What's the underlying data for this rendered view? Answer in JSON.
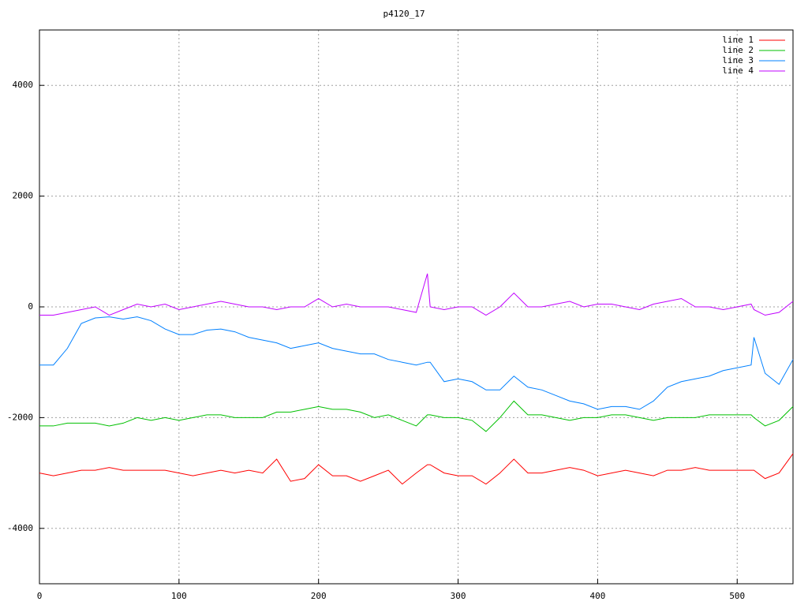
{
  "chart_data": {
    "type": "line",
    "title": "p4120_17",
    "x": [
      0,
      10,
      20,
      30,
      40,
      50,
      60,
      70,
      80,
      90,
      100,
      110,
      120,
      130,
      140,
      150,
      160,
      170,
      180,
      190,
      200,
      210,
      220,
      230,
      240,
      250,
      260,
      270,
      278,
      280,
      290,
      300,
      310,
      320,
      330,
      340,
      350,
      360,
      370,
      380,
      390,
      400,
      410,
      420,
      430,
      440,
      450,
      460,
      470,
      480,
      490,
      500,
      510,
      512,
      520,
      530,
      540
    ],
    "series": [
      {
        "name": "line 1",
        "color": "#ff0000",
        "values": [
          -3000,
          -3050,
          -3000,
          -2950,
          -2950,
          -2900,
          -2950,
          -2950,
          -2950,
          -2950,
          -3000,
          -3050,
          -3000,
          -2950,
          -3000,
          -2950,
          -3000,
          -2750,
          -3150,
          -3100,
          -2850,
          -3050,
          -3050,
          -3150,
          -3050,
          -2950,
          -3200,
          -3000,
          -2850,
          -2850,
          -3000,
          -3050,
          -3050,
          -3200,
          -3000,
          -2750,
          -3000,
          -3000,
          -2950,
          -2900,
          -2950,
          -3050,
          -3000,
          -2950,
          -3000,
          -3050,
          -2950,
          -2950,
          -2900,
          -2950,
          -2950,
          -2950,
          -2950,
          -2950,
          -3100,
          -3000,
          -2650
        ]
      },
      {
        "name": "line 2",
        "color": "#00c000",
        "values": [
          -2150,
          -2150,
          -2100,
          -2100,
          -2100,
          -2150,
          -2100,
          -2000,
          -2050,
          -2000,
          -2050,
          -2000,
          -1950,
          -1950,
          -2000,
          -2000,
          -2000,
          -1900,
          -1900,
          -1850,
          -1800,
          -1850,
          -1850,
          -1900,
          -2000,
          -1950,
          -2050,
          -2150,
          -1950,
          -1950,
          -2000,
          -2000,
          -2050,
          -2250,
          -2000,
          -1700,
          -1950,
          -1950,
          -2000,
          -2050,
          -2000,
          -2000,
          -1950,
          -1950,
          -2000,
          -2050,
          -2000,
          -2000,
          -2000,
          -1950,
          -1950,
          -1950,
          -1950,
          -2000,
          -2150,
          -2050,
          -1800
        ]
      },
      {
        "name": "line 3",
        "color": "#0080ff",
        "values": [
          -1050,
          -1050,
          -750,
          -300,
          -200,
          -180,
          -220,
          -180,
          -250,
          -400,
          -500,
          -500,
          -420,
          -400,
          -450,
          -550,
          -600,
          -650,
          -750,
          -700,
          -650,
          -750,
          -800,
          -850,
          -850,
          -950,
          -1000,
          -1050,
          -1000,
          -1000,
          -1350,
          -1300,
          -1350,
          -1500,
          -1500,
          -1250,
          -1450,
          -1500,
          -1600,
          -1700,
          -1750,
          -1850,
          -1800,
          -1800,
          -1850,
          -1700,
          -1450,
          -1350,
          -1300,
          -1250,
          -1150,
          -1100,
          -1050,
          -550,
          -1200,
          -1400,
          -950
        ]
      },
      {
        "name": "line 4",
        "color": "#c000ff",
        "values": [
          -150,
          -150,
          -100,
          -50,
          0,
          -150,
          -50,
          50,
          0,
          50,
          -50,
          0,
          50,
          100,
          50,
          0,
          0,
          -50,
          0,
          0,
          150,
          0,
          50,
          0,
          0,
          0,
          -50,
          -100,
          600,
          0,
          -50,
          0,
          0,
          -150,
          0,
          250,
          0,
          0,
          50,
          100,
          0,
          50,
          50,
          0,
          -50,
          50,
          100,
          150,
          0,
          0,
          -50,
          0,
          50,
          -50,
          -150,
          -100,
          100
        ]
      }
    ],
    "xlim": [
      0,
      540
    ],
    "ylim": [
      -5000,
      5000
    ],
    "xticks": [
      0,
      100,
      200,
      300,
      400,
      500
    ],
    "yticks": [
      -4000,
      -2000,
      0,
      2000,
      4000
    ],
    "grid": true,
    "legend": "top-right"
  }
}
